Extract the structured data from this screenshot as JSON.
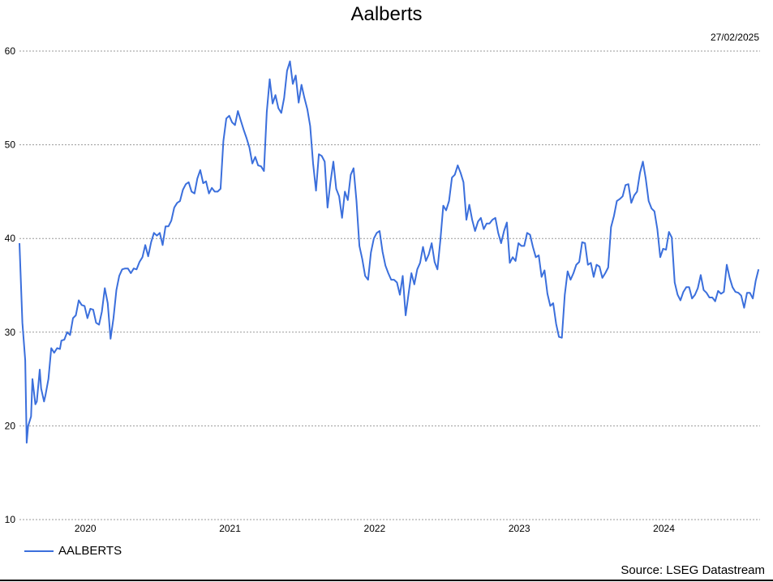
{
  "title": "Aalberts",
  "date": "27/02/2025",
  "source": "Source: LSEG Datastream",
  "colors": {
    "line": "#3b6fdc",
    "grid": "#9a9a9a"
  },
  "chart_data": {
    "type": "line",
    "title": "Aalberts",
    "xlabel": "",
    "ylabel": "",
    "ylim": [
      10,
      60
    ],
    "yticks": [
      10,
      20,
      30,
      40,
      50,
      60
    ],
    "xlim": [
      2019.55,
      2024.67
    ],
    "xticks": [
      {
        "label": "2020",
        "x": 2020.0
      },
      {
        "label": "2021",
        "x": 2021.0
      },
      {
        "label": "2022",
        "x": 2022.0
      },
      {
        "label": "2023",
        "x": 2023.0
      },
      {
        "label": "2024",
        "x": 2024.0
      }
    ],
    "grid": true,
    "legend": "bottom-left",
    "series": [
      {
        "name": "AALBERTS",
        "color": "#3b6fdc",
        "x": [
          2019.55,
          2019.57,
          2019.59,
          2019.6,
          2019.61,
          2019.63,
          2019.64,
          2019.66,
          2019.67,
          2019.69,
          2019.7,
          2019.72,
          2019.73,
          2019.75,
          2019.77,
          2019.79,
          2019.81,
          2019.83,
          2019.84,
          2019.86,
          2019.88,
          2019.9,
          2019.92,
          2019.94,
          2019.96,
          2019.98,
          2020.0,
          2020.02,
          2020.04,
          2020.06,
          2020.08,
          2020.1,
          2020.12,
          2020.14,
          2020.16,
          2020.18,
          2020.2,
          2020.22,
          2020.24,
          2020.26,
          2020.28,
          2020.3,
          2020.32,
          2020.34,
          2020.36,
          2020.38,
          2020.4,
          2020.42,
          2020.44,
          2020.46,
          2020.48,
          2020.5,
          2020.52,
          2020.54,
          2020.56,
          2020.58,
          2020.6,
          2020.62,
          2020.64,
          2020.66,
          2020.68,
          2020.7,
          2020.72,
          2020.74,
          2020.76,
          2020.78,
          2020.8,
          2020.82,
          2020.84,
          2020.86,
          2020.88,
          2020.9,
          2020.92,
          2020.94,
          2020.96,
          2020.98,
          2021.0,
          2021.02,
          2021.04,
          2021.06,
          2021.08,
          2021.1,
          2021.12,
          2021.14,
          2021.16,
          2021.18,
          2021.2,
          2021.22,
          2021.24,
          2021.26,
          2021.28,
          2021.3,
          2021.32,
          2021.34,
          2021.36,
          2021.38,
          2021.4,
          2021.42,
          2021.44,
          2021.46,
          2021.48,
          2021.5,
          2021.52,
          2021.54,
          2021.56,
          2021.58,
          2021.6,
          2021.62,
          2021.64,
          2021.66,
          2021.68,
          2021.7,
          2021.72,
          2021.74,
          2021.76,
          2021.78,
          2021.8,
          2021.82,
          2021.84,
          2021.86,
          2021.88,
          2021.9,
          2021.92,
          2021.94,
          2021.96,
          2021.98,
          2022.0,
          2022.02,
          2022.04,
          2022.06,
          2022.08,
          2022.1,
          2022.12,
          2022.14,
          2022.16,
          2022.18,
          2022.2,
          2022.22,
          2022.24,
          2022.26,
          2022.28,
          2022.3,
          2022.32,
          2022.34,
          2022.36,
          2022.38,
          2022.4,
          2022.42,
          2022.44,
          2022.46,
          2022.48,
          2022.5,
          2022.52,
          2022.54,
          2022.56,
          2022.58,
          2022.6,
          2022.62,
          2022.64,
          2022.66,
          2022.68,
          2022.7,
          2022.72,
          2022.74,
          2022.76,
          2022.78,
          2022.8,
          2022.82,
          2022.84,
          2022.86,
          2022.88,
          2022.9,
          2022.92,
          2022.94,
          2022.96,
          2022.98,
          2023.0,
          2023.02,
          2023.04,
          2023.06,
          2023.08,
          2023.1,
          2023.12,
          2023.14,
          2023.16,
          2023.18,
          2023.2,
          2023.22,
          2023.24,
          2023.26,
          2023.28,
          2023.3,
          2023.32,
          2023.34,
          2023.36,
          2023.38,
          2023.4,
          2023.42,
          2023.44,
          2023.46,
          2023.48,
          2023.5,
          2023.52,
          2023.54,
          2023.56,
          2023.58,
          2023.6,
          2023.62,
          2023.64,
          2023.66,
          2023.68,
          2023.7,
          2023.72,
          2023.74,
          2023.76,
          2023.78,
          2023.8,
          2023.82,
          2023.84,
          2023.86,
          2023.88,
          2023.9,
          2023.92,
          2023.94,
          2023.96,
          2023.98,
          2024.0,
          2024.02,
          2024.04,
          2024.06,
          2024.08,
          2024.1,
          2024.12,
          2024.14,
          2024.16,
          2024.18,
          2024.2,
          2024.22,
          2024.24,
          2024.26,
          2024.28,
          2024.3,
          2024.32,
          2024.34,
          2024.36,
          2024.38,
          2024.4,
          2024.42,
          2024.44,
          2024.46,
          2024.48,
          2024.5,
          2024.52,
          2024.54,
          2024.56,
          2024.58,
          2024.6,
          2024.62,
          2024.64,
          2024.66
        ],
        "y": [
          39.5,
          31.0,
          27.0,
          18.2,
          20.0,
          21.0,
          25.0,
          22.3,
          22.6,
          26.0,
          24.0,
          22.6,
          23.3,
          25.0,
          28.3,
          27.8,
          28.3,
          28.2,
          29.1,
          29.2,
          30.0,
          29.7,
          31.5,
          31.8,
          33.4,
          32.9,
          32.8,
          31.5,
          32.5,
          32.4,
          31.0,
          30.8,
          32.2,
          34.7,
          33.1,
          29.3,
          31.5,
          34.5,
          36.0,
          36.7,
          36.8,
          36.8,
          36.3,
          36.8,
          36.7,
          37.5,
          38.0,
          39.3,
          38.1,
          39.6,
          40.6,
          40.3,
          40.6,
          39.3,
          41.3,
          41.3,
          41.9,
          43.3,
          43.8,
          44.0,
          45.2,
          45.8,
          46.0,
          45.0,
          44.8,
          46.4,
          47.3,
          45.9,
          46.1,
          44.8,
          45.4,
          45.0,
          45.0,
          45.3,
          50.4,
          52.8,
          53.1,
          52.4,
          52.1,
          53.6,
          52.6,
          51.6,
          50.7,
          49.7,
          48.0,
          48.7,
          47.8,
          47.7,
          47.2,
          53.5,
          57.0,
          54.4,
          55.3,
          53.9,
          53.4,
          55.0,
          57.9,
          58.9,
          56.5,
          57.4,
          54.5,
          56.4,
          55.0,
          53.8,
          52.0,
          48.0,
          45.1,
          49.0,
          48.8,
          48.2,
          43.3,
          46.0,
          48.2,
          45.3,
          44.5,
          42.2,
          45.0,
          44.1,
          46.8,
          47.5,
          44.0,
          39.2,
          37.8,
          36.0,
          35.6,
          38.5,
          40.0,
          40.6,
          40.8,
          38.6,
          37.1,
          36.3,
          35.6,
          35.6,
          35.3,
          34.0,
          36.0,
          31.8,
          34.1,
          36.3,
          35.1,
          36.7,
          37.4,
          39.1,
          37.6,
          38.3,
          39.5,
          37.5,
          36.7,
          39.8,
          43.5,
          43.0,
          44.0,
          46.5,
          46.8,
          47.8,
          47.0,
          46.0,
          42.0,
          43.6,
          42.0,
          40.8,
          41.8,
          42.2,
          41.0,
          41.6,
          41.6,
          42.0,
          42.2,
          40.6,
          39.5,
          40.8,
          41.7,
          37.4,
          38.0,
          37.6,
          39.5,
          39.2,
          39.2,
          40.6,
          40.4,
          39.1,
          38.0,
          38.2,
          35.9,
          36.6,
          34.1,
          32.8,
          33.1,
          30.9,
          29.5,
          29.4,
          34.0,
          36.5,
          35.6,
          36.3,
          37.2,
          37.5,
          39.6,
          39.5,
          37.2,
          37.4,
          35.9,
          37.2,
          37.0,
          35.8,
          36.3,
          36.9,
          41.2,
          42.4,
          44.0,
          44.2,
          44.5,
          45.7,
          45.8,
          43.8,
          44.6,
          45.0,
          47.0,
          48.2,
          46.4,
          44.0,
          43.2,
          42.9,
          41.0,
          38.0,
          38.9,
          38.8,
          40.7,
          40.1,
          35.3,
          34.0,
          33.4,
          34.3,
          34.8,
          34.8,
          33.6,
          34.0,
          34.7,
          36.1,
          34.5,
          34.2,
          33.7,
          33.7,
          33.3,
          34.4,
          34.1,
          34.3,
          37.2,
          35.8,
          34.8,
          34.3,
          34.2,
          33.9,
          32.6,
          34.2,
          34.2,
          33.6,
          35.5,
          36.7
        ]
      }
    ]
  }
}
